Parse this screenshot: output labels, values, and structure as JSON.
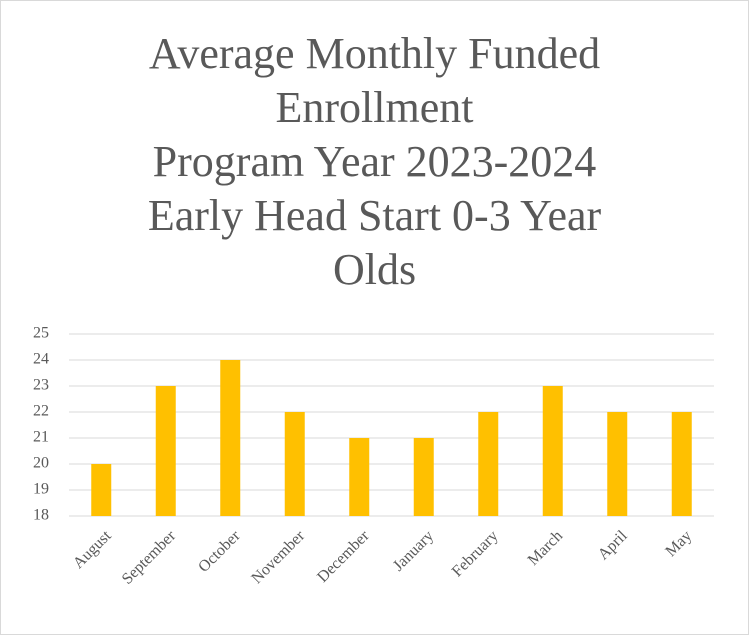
{
  "chart_data": {
    "type": "bar",
    "title": "Average Monthly Funded Enrollment\nProgram Year 2023-2024\nEarly Head Start 0-3 Year Olds",
    "categories": [
      "August",
      "September",
      "October",
      "November",
      "December",
      "January",
      "February",
      "March",
      "April",
      "May"
    ],
    "values": [
      20,
      23,
      24,
      22,
      21,
      21,
      22,
      23,
      22,
      22
    ],
    "color": "#ffc000",
    "ylim": [
      18,
      25
    ],
    "yticks": [
      18,
      19,
      20,
      21,
      22,
      23,
      24,
      25
    ],
    "grid": true
  }
}
